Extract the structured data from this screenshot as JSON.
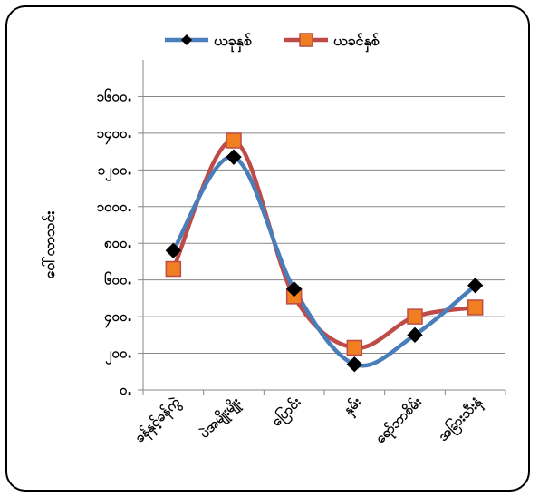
{
  "chart_data": {
    "type": "line",
    "title": "",
    "xlabel": "",
    "ylabel": "ဝေါ်လာသင်း",
    "ylim": [
      0,
      1800
    ],
    "y_ticks": [
      "၀.",
      "၂၀၀.",
      "၄၀၀.",
      "၆၀၀.",
      "၈၀၀.",
      "၁၀၀၀.",
      "၁၂၀၀.",
      "၁၄၀၀.",
      "၁၆၀၀."
    ],
    "y_tick_values": [
      0,
      200,
      400,
      600,
      800,
      1000,
      1200,
      1400,
      1600
    ],
    "categories": [
      "ခန်နှင့်ခန်ကွဲ",
      "ပဲအမျိုးမျိုး",
      "ပြောင်း",
      "နှမ်း",
      "ရော်ဘာစိမ်း",
      "အခြားသီးနှံ"
    ],
    "legend_position": "top",
    "grid": true,
    "smooth": true,
    "series": [
      {
        "name": "ယခုနှစ်",
        "color": "#4a7ebb",
        "marker": "diamond",
        "marker_color": "#000000",
        "values": [
          760,
          1270,
          550,
          140,
          300,
          570
        ]
      },
      {
        "name": "ယခင်နှစ်",
        "color": "#be4b48",
        "marker": "square",
        "marker_color": "#f07f22",
        "values": [
          660,
          1360,
          510,
          230,
          400,
          450
        ]
      }
    ]
  }
}
